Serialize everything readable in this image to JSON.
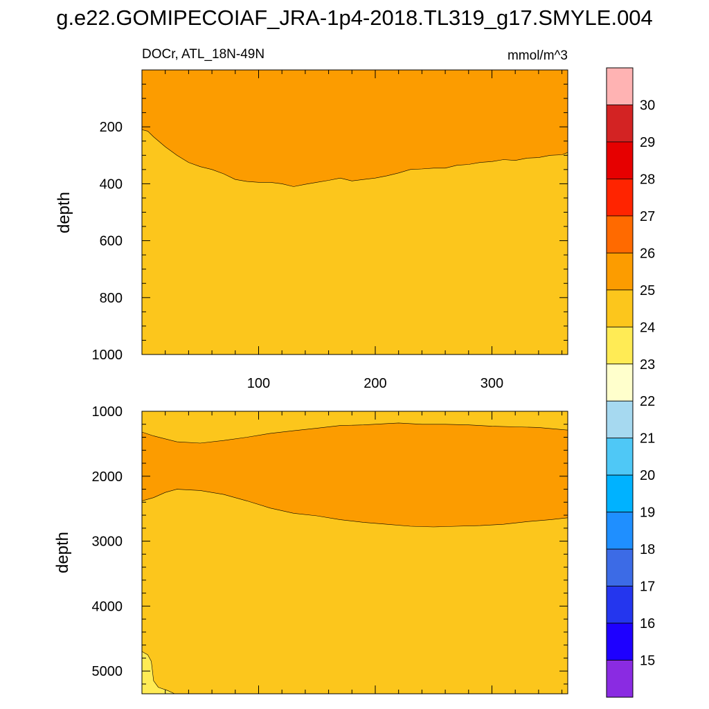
{
  "title": "g.e22.GOMIPECOIAF_JRA-1p4-2018.TL319_g17.SMYLE.004",
  "chart_data": [
    {
      "type": "contour",
      "panel": "upper",
      "left_label": "DOCr, ATL_18N-49N",
      "right_label": "mmol/m^3",
      "ylabel": "depth",
      "xlim": [
        0,
        365
      ],
      "ylim": [
        0,
        1000
      ],
      "y_reversed": true,
      "xticks": [
        100,
        200,
        300
      ],
      "yticks": [
        200,
        400,
        600,
        800,
        1000
      ],
      "regions": [
        {
          "band": "25-26",
          "from": "top",
          "boundary": [
            [
              0,
              210
            ],
            [
              5,
              215
            ],
            [
              10,
              235
            ],
            [
              20,
              270
            ],
            [
              30,
              300
            ],
            [
              40,
              325
            ],
            [
              50,
              340
            ],
            [
              60,
              350
            ],
            [
              70,
              365
            ],
            [
              80,
              385
            ],
            [
              90,
              392
            ],
            [
              100,
              395
            ],
            [
              110,
              395
            ],
            [
              120,
              400
            ],
            [
              130,
              410
            ],
            [
              140,
              402
            ],
            [
              150,
              395
            ],
            [
              160,
              388
            ],
            [
              170,
              380
            ],
            [
              180,
              390
            ],
            [
              190,
              385
            ],
            [
              200,
              380
            ],
            [
              210,
              372
            ],
            [
              220,
              362
            ],
            [
              230,
              350
            ],
            [
              240,
              348
            ],
            [
              250,
              345
            ],
            [
              260,
              345
            ],
            [
              270,
              335
            ],
            [
              280,
              332
            ],
            [
              290,
              325
            ],
            [
              300,
              322
            ],
            [
              310,
              315
            ],
            [
              320,
              318
            ],
            [
              330,
              310
            ],
            [
              340,
              308
            ],
            [
              350,
              300
            ],
            [
              360,
              298
            ],
            [
              365,
              290
            ]
          ]
        },
        {
          "band": "24-25",
          "from": "boundary",
          "to": "bottom"
        }
      ]
    },
    {
      "type": "contour",
      "panel": "lower",
      "ylabel": "depth",
      "xlim": [
        0,
        365
      ],
      "ylim": [
        1000,
        5350
      ],
      "y_reversed": true,
      "yticks": [
        1000,
        2000,
        3000,
        4000,
        5000
      ],
      "regions": [
        {
          "band": "25-26",
          "upper_boundary": [
            [
              0,
              1320
            ],
            [
              10,
              1380
            ],
            [
              30,
              1470
            ],
            [
              50,
              1490
            ],
            [
              70,
              1450
            ],
            [
              90,
              1400
            ],
            [
              110,
              1340
            ],
            [
              130,
              1300
            ],
            [
              150,
              1260
            ],
            [
              170,
              1220
            ],
            [
              190,
              1210
            ],
            [
              210,
              1190
            ],
            [
              220,
              1180
            ],
            [
              240,
              1200
            ],
            [
              260,
              1200
            ],
            [
              280,
              1210
            ],
            [
              300,
              1230
            ],
            [
              320,
              1240
            ],
            [
              340,
              1250
            ],
            [
              365,
              1290
            ]
          ],
          "lower_boundary": [
            [
              0,
              2380
            ],
            [
              10,
              2330
            ],
            [
              20,
              2250
            ],
            [
              30,
              2200
            ],
            [
              50,
              2220
            ],
            [
              70,
              2280
            ],
            [
              90,
              2380
            ],
            [
              110,
              2490
            ],
            [
              130,
              2570
            ],
            [
              150,
              2610
            ],
            [
              170,
              2670
            ],
            [
              190,
              2710
            ],
            [
              210,
              2740
            ],
            [
              230,
              2770
            ],
            [
              250,
              2780
            ],
            [
              270,
              2770
            ],
            [
              290,
              2760
            ],
            [
              310,
              2740
            ],
            [
              330,
              2700
            ],
            [
              350,
              2670
            ],
            [
              365,
              2640
            ]
          ]
        },
        {
          "band": "23-24",
          "polygon": [
            [
              0,
              4700
            ],
            [
              5,
              4750
            ],
            [
              8,
              4850
            ],
            [
              9,
              5000
            ],
            [
              10,
              5150
            ],
            [
              14,
              5250
            ],
            [
              22,
              5300
            ],
            [
              28,
              5350
            ],
            [
              0,
              5350
            ]
          ]
        }
      ]
    },
    {
      "type": "colorbar",
      "labels": [
        "15",
        "16",
        "17",
        "18",
        "19",
        "20",
        "21",
        "22",
        "23",
        "24",
        "25",
        "26",
        "27",
        "28",
        "29",
        "30"
      ],
      "colors": [
        "#8a2be2",
        "#1e00ff",
        "#2436ee",
        "#3c6be6",
        "#1f8fff",
        "#00b2ff",
        "#4fc8f6",
        "#a6d9f0",
        "#ffffcc",
        "#ffeb55",
        "#fcc61c",
        "#fc9c00",
        "#ff6a00",
        "#ff2400",
        "#e60000",
        "#d32323",
        "#ffb3b3"
      ],
      "ticks_between_boxes": true
    }
  ],
  "colors": {
    "orange_25_26": "#fc9c00",
    "yellow_24_25": "#fcc61c",
    "lightyellow_23_24": "#ffeb55"
  }
}
